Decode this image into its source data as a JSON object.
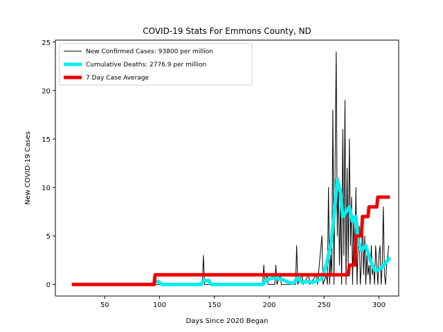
{
  "chart_data": {
    "type": "line",
    "title": "COVID-19 Stats For Emmons County, ND",
    "xlabel": "Days Since 2020 Began",
    "ylabel": "New COVID-19 Cases",
    "xlim": [
      5,
      318
    ],
    "ylim": [
      -1.2,
      25.2
    ],
    "xticks": [
      50,
      100,
      150,
      200,
      250,
      300
    ],
    "yticks": [
      0,
      5,
      10,
      15,
      20,
      25
    ],
    "grid": false,
    "legend_position": "top-left",
    "series": [
      {
        "name": "New Confirmed Cases: 93800 per million",
        "color": "#000000",
        "points": [
          [
            20,
            0
          ],
          [
            94,
            0
          ],
          [
            95,
            1
          ],
          [
            96,
            0
          ],
          [
            139,
            0
          ],
          [
            140,
            3
          ],
          [
            141,
            0
          ],
          [
            194,
            0
          ],
          [
            195,
            2
          ],
          [
            196,
            0
          ],
          [
            198,
            1
          ],
          [
            199,
            0
          ],
          [
            205,
            0
          ],
          [
            206,
            2
          ],
          [
            207,
            0
          ],
          [
            210,
            1
          ],
          [
            211,
            0
          ],
          [
            224,
            0
          ],
          [
            225,
            4
          ],
          [
            226,
            0
          ],
          [
            230,
            1
          ],
          [
            231,
            0
          ],
          [
            236,
            1
          ],
          [
            237,
            0
          ],
          [
            243,
            1
          ],
          [
            244,
            0
          ],
          [
            248,
            5
          ],
          [
            249,
            0
          ],
          [
            252,
            1
          ],
          [
            253,
            0
          ],
          [
            254,
            10
          ],
          [
            255,
            0
          ],
          [
            256,
            3
          ],
          [
            257,
            1
          ],
          [
            258,
            18
          ],
          [
            259,
            0
          ],
          [
            260,
            12
          ],
          [
            261,
            24
          ],
          [
            262,
            5
          ],
          [
            263,
            11
          ],
          [
            264,
            2
          ],
          [
            265,
            9
          ],
          [
            266,
            0
          ],
          [
            267,
            16
          ],
          [
            268,
            3
          ],
          [
            269,
            19
          ],
          [
            270,
            0
          ],
          [
            271,
            12
          ],
          [
            272,
            2
          ],
          [
            273,
            15
          ],
          [
            274,
            4
          ],
          [
            275,
            9
          ],
          [
            276,
            0
          ],
          [
            277,
            7
          ],
          [
            278,
            2
          ],
          [
            279,
            10
          ],
          [
            280,
            0
          ],
          [
            281,
            4
          ],
          [
            282,
            6
          ],
          [
            283,
            0
          ],
          [
            284,
            2
          ],
          [
            285,
            7
          ],
          [
            286,
            1
          ],
          [
            287,
            5
          ],
          [
            288,
            0
          ],
          [
            289,
            3
          ],
          [
            290,
            1
          ],
          [
            291,
            2
          ],
          [
            292,
            0
          ],
          [
            293,
            4
          ],
          [
            294,
            1
          ],
          [
            295,
            2
          ],
          [
            296,
            0
          ],
          [
            297,
            4
          ],
          [
            298,
            2
          ],
          [
            299,
            0
          ],
          [
            300,
            3
          ],
          [
            301,
            4
          ],
          [
            302,
            0
          ],
          [
            303,
            2
          ],
          [
            304,
            8
          ],
          [
            305,
            1
          ],
          [
            306,
            0
          ],
          [
            307,
            2
          ],
          [
            308,
            3
          ],
          [
            309,
            4
          ]
        ]
      },
      {
        "name": "Cumulative Deaths: 2776.9 per million",
        "color": "#00f0f0",
        "points": [
          [
            95,
            0.3
          ],
          [
            99,
            0.3
          ],
          [
            102,
            0
          ],
          [
            138,
            0
          ],
          [
            140,
            0.4
          ],
          [
            145,
            0.4
          ],
          [
            147,
            0
          ],
          [
            194,
            0
          ],
          [
            198,
            0.5
          ],
          [
            205,
            0.7
          ],
          [
            212,
            0.5
          ],
          [
            218,
            0.2
          ],
          [
            222,
            0.1
          ],
          [
            226,
            0.7
          ],
          [
            230,
            0.2
          ],
          [
            236,
            0.3
          ],
          [
            240,
            0.2
          ],
          [
            248,
            0.6
          ],
          [
            252,
            2
          ],
          [
            256,
            4
          ],
          [
            259,
            7
          ],
          [
            262,
            10.8
          ],
          [
            265,
            9.5
          ],
          [
            267,
            7
          ],
          [
            270,
            7.5
          ],
          [
            273,
            8
          ],
          [
            276,
            6.5
          ],
          [
            279,
            7
          ],
          [
            281,
            4.5
          ],
          [
            284,
            3.5
          ],
          [
            288,
            4
          ],
          [
            292,
            2.5
          ],
          [
            296,
            1.5
          ],
          [
            300,
            1.5
          ],
          [
            303,
            1.8
          ],
          [
            306,
            2.2
          ],
          [
            310,
            2.8
          ]
        ]
      },
      {
        "name": "7 Day Case Average",
        "color": "#ee0000",
        "points": [
          [
            20,
            0
          ],
          [
            95,
            0
          ],
          [
            96,
            1
          ],
          [
            272,
            1
          ],
          [
            273,
            2
          ],
          [
            278,
            2
          ],
          [
            279,
            5
          ],
          [
            284,
            5
          ],
          [
            285,
            7
          ],
          [
            290,
            7
          ],
          [
            291,
            8
          ],
          [
            298,
            8
          ],
          [
            299,
            9
          ],
          [
            310,
            9
          ]
        ]
      }
    ]
  }
}
